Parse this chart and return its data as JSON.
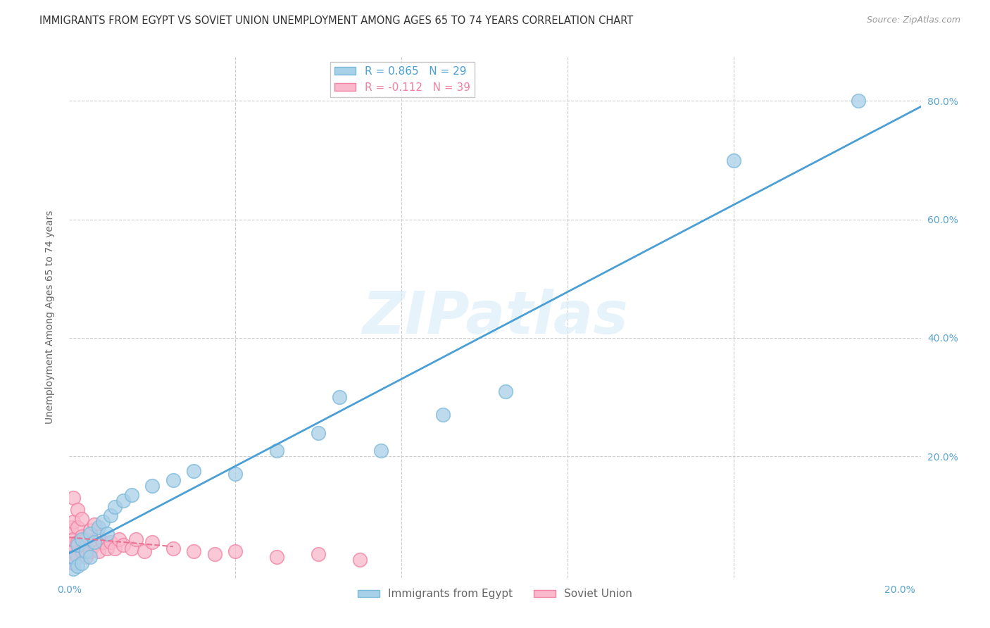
{
  "title": "IMMIGRANTS FROM EGYPT VS SOVIET UNION UNEMPLOYMENT AMONG AGES 65 TO 74 YEARS CORRELATION CHART",
  "source": "Source: ZipAtlas.com",
  "ylabel": "Unemployment Among Ages 65 to 74 years",
  "legend_label1": "Immigrants from Egypt",
  "legend_label2": "Soviet Union",
  "R1": 0.865,
  "N1": 29,
  "R2": -0.112,
  "N2": 39,
  "color1": "#a8d0e8",
  "color2": "#f9b8cc",
  "edge_color1": "#7ab8d8",
  "edge_color2": "#f080a0",
  "line_color1": "#4a9fd4",
  "line_color2": "#e87090",
  "watermark": "ZIPatlas",
  "xlim": [
    0.0,
    0.205
  ],
  "ylim": [
    -0.005,
    0.875
  ],
  "xticks": [
    0.0,
    0.04,
    0.08,
    0.12,
    0.16,
    0.2
  ],
  "yticks": [
    0.0,
    0.2,
    0.4,
    0.6,
    0.8
  ],
  "egypt_x": [
    0.001,
    0.001,
    0.002,
    0.002,
    0.003,
    0.003,
    0.004,
    0.005,
    0.005,
    0.006,
    0.007,
    0.008,
    0.009,
    0.01,
    0.011,
    0.013,
    0.015,
    0.02,
    0.025,
    0.03,
    0.04,
    0.05,
    0.06,
    0.065,
    0.075,
    0.09,
    0.105,
    0.16,
    0.19
  ],
  "egypt_y": [
    0.01,
    0.03,
    0.015,
    0.05,
    0.02,
    0.06,
    0.04,
    0.03,
    0.07,
    0.055,
    0.08,
    0.09,
    0.07,
    0.1,
    0.115,
    0.125,
    0.135,
    0.15,
    0.16,
    0.175,
    0.17,
    0.21,
    0.24,
    0.3,
    0.21,
    0.27,
    0.31,
    0.7,
    0.8
  ],
  "soviet_x": [
    0.0005,
    0.0005,
    0.001,
    0.001,
    0.001,
    0.001,
    0.001,
    0.002,
    0.002,
    0.002,
    0.002,
    0.003,
    0.003,
    0.003,
    0.004,
    0.004,
    0.005,
    0.005,
    0.006,
    0.006,
    0.007,
    0.007,
    0.008,
    0.009,
    0.01,
    0.011,
    0.012,
    0.013,
    0.015,
    0.016,
    0.018,
    0.02,
    0.025,
    0.03,
    0.035,
    0.04,
    0.05,
    0.06,
    0.07
  ],
  "soviet_y": [
    0.05,
    0.08,
    0.02,
    0.04,
    0.06,
    0.09,
    0.13,
    0.03,
    0.055,
    0.08,
    0.11,
    0.04,
    0.065,
    0.095,
    0.03,
    0.06,
    0.04,
    0.075,
    0.05,
    0.085,
    0.04,
    0.065,
    0.055,
    0.045,
    0.055,
    0.045,
    0.06,
    0.05,
    0.045,
    0.06,
    0.04,
    0.055,
    0.045,
    0.04,
    0.035,
    0.04,
    0.03,
    0.035,
    0.025
  ],
  "title_fontsize": 10.5,
  "axis_label_fontsize": 10,
  "tick_fontsize": 10,
  "legend_fontsize": 11,
  "source_fontsize": 9,
  "tick_color": "#5ba3d0"
}
